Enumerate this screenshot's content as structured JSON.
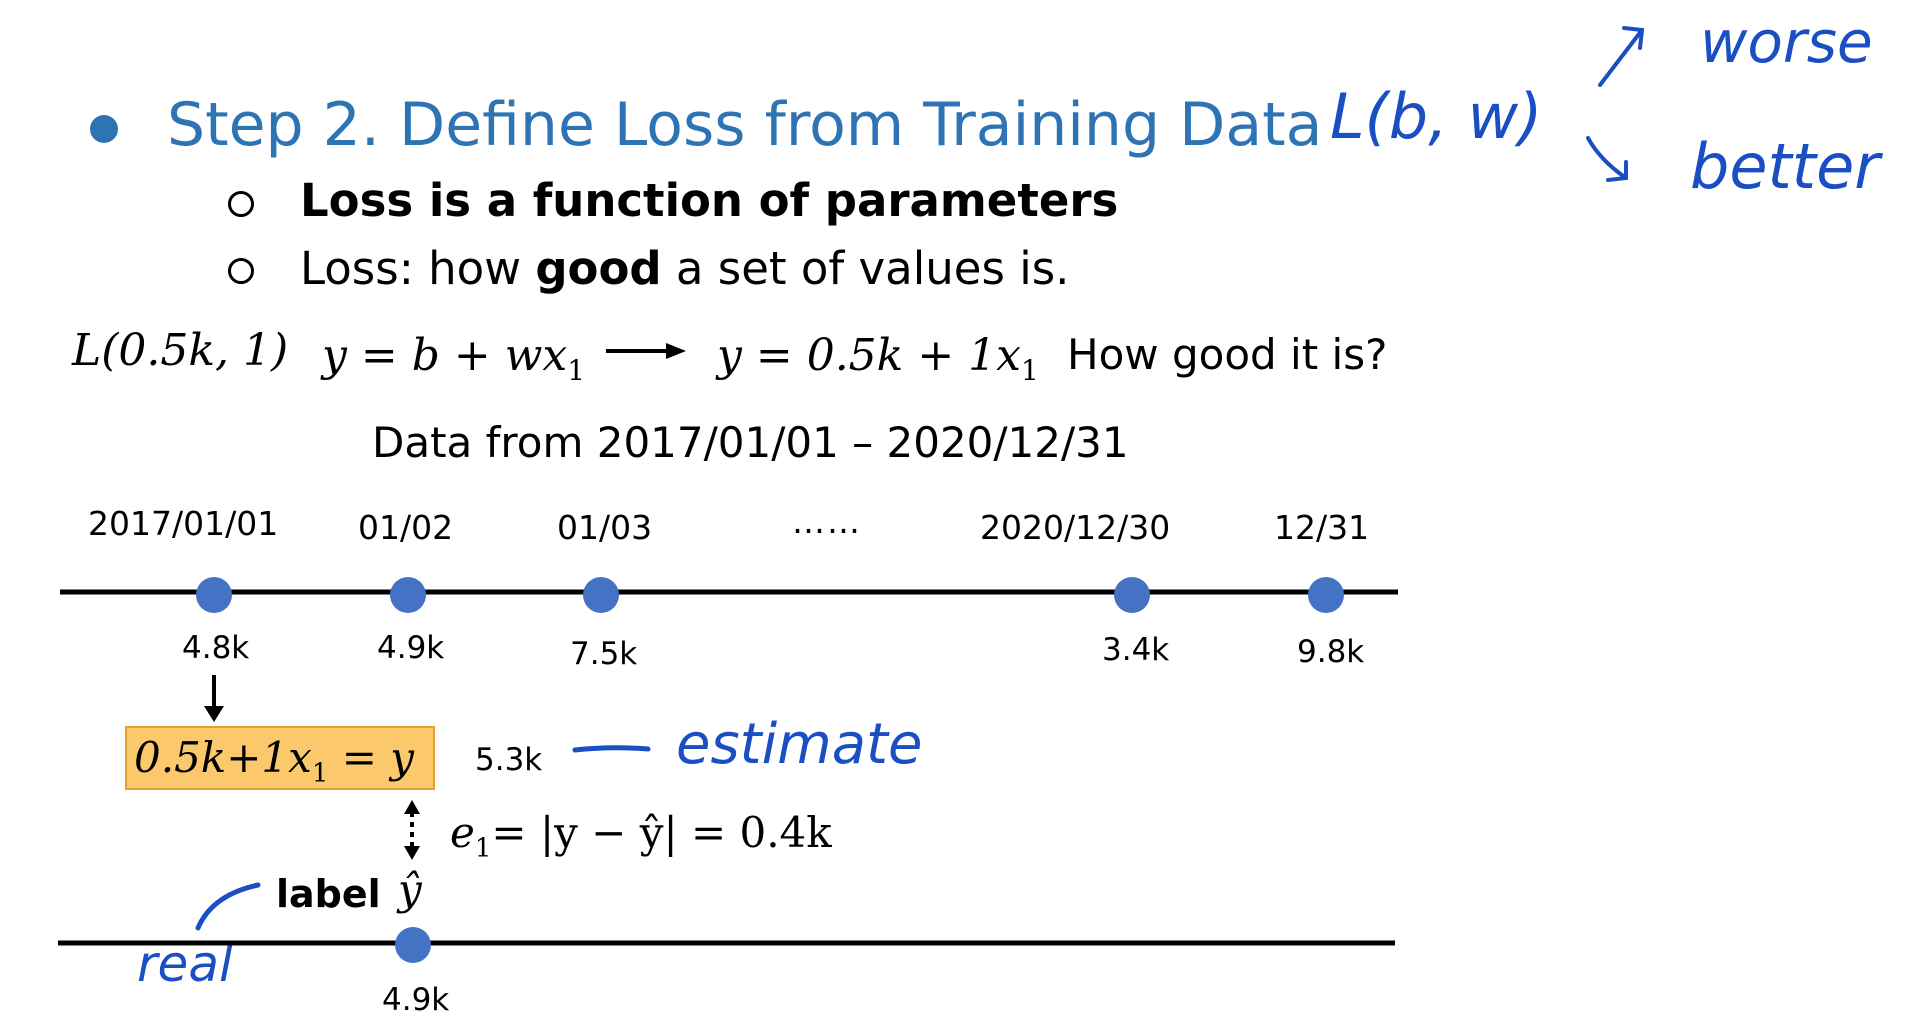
{
  "slide": {
    "title": "Step 2. Define Loss from Training Data",
    "bullets": [
      {
        "text": "Loss is a function of parameters"
      },
      {
        "prefix": "Loss: how ",
        "bold": "good",
        "suffix": " a set of values is."
      }
    ],
    "equation_line": {
      "loss": "L(0.5k, 1)",
      "model": "y = b + wx",
      "instance": "y = 0.5k + 1x",
      "subscript": "1",
      "question": "How good it is?"
    },
    "data_range": "Data from 2017/01/01 – 2020/12/31",
    "timeline": {
      "dates": [
        "2017/01/01",
        "01/02",
        "01/03",
        "……",
        "2020/12/30",
        "12/31"
      ],
      "values": [
        "4.8k",
        "4.9k",
        "7.5k",
        "3.4k",
        "9.8k"
      ]
    },
    "estimate": {
      "formula": "0.5k+1x",
      "formula_tail": " = y",
      "value": "5.3k",
      "error": "e",
      "error_sub": "1",
      "error_expr": "= |y − ŷ| = 0.4k",
      "label_word": "label",
      "label_symbol": "ŷ",
      "label_value": "4.9k"
    },
    "handwriting": {
      "lbw": "L(b, w)",
      "worse": "worse",
      "better": "better",
      "estimate": "estimate",
      "real": "real"
    },
    "colors": {
      "title": "#2e74b5",
      "dot": "#4472c4",
      "highlight": "#fbc96b",
      "pen": "#1a4fc4"
    }
  }
}
